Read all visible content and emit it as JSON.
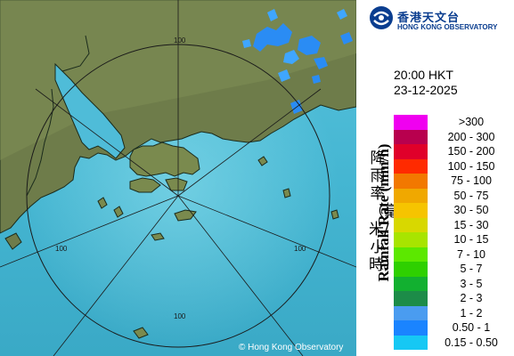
{
  "header": {
    "logo_zh": "香港天文台",
    "logo_en": "HONG KONG OBSERVATORY"
  },
  "timestamp": {
    "time": "20:00 HKT",
    "date": "23-12-2025"
  },
  "legend": {
    "title_zh": "降雨率（毫米/小時）",
    "title_en": "Rainfall Rate (mm/h)",
    "items": [
      {
        "label": ">300",
        "color": "#f000f0"
      },
      {
        "label": "200 - 300",
        "color": "#b8004e"
      },
      {
        "label": "150 - 200",
        "color": "#e0002a"
      },
      {
        "label": "100 - 150",
        "color": "#ff2a00"
      },
      {
        "label": "75 - 100",
        "color": "#f27800"
      },
      {
        "label": "50 - 75",
        "color": "#f0a800"
      },
      {
        "label": "30 - 50",
        "color": "#f6c400"
      },
      {
        "label": "15 - 30",
        "color": "#d8d800"
      },
      {
        "label": "10 - 15",
        "color": "#a8e400"
      },
      {
        "label": "7 - 10",
        "color": "#5ce800"
      },
      {
        "label": "5 - 7",
        "color": "#2ed000"
      },
      {
        "label": "3 - 5",
        "color": "#12b030"
      },
      {
        "label": "2 - 3",
        "color": "#1c8c48"
      },
      {
        "label": "1 - 2",
        "color": "#4a9cf0"
      },
      {
        "label": "0.50 - 1",
        "color": "#1a84ff"
      },
      {
        "label": "0.15 - 0.50",
        "color": "#16c8f4"
      }
    ]
  },
  "map": {
    "range_rings": [
      "100",
      "100",
      "100",
      "100"
    ],
    "credit": "© Hong Kong Observatory"
  }
}
